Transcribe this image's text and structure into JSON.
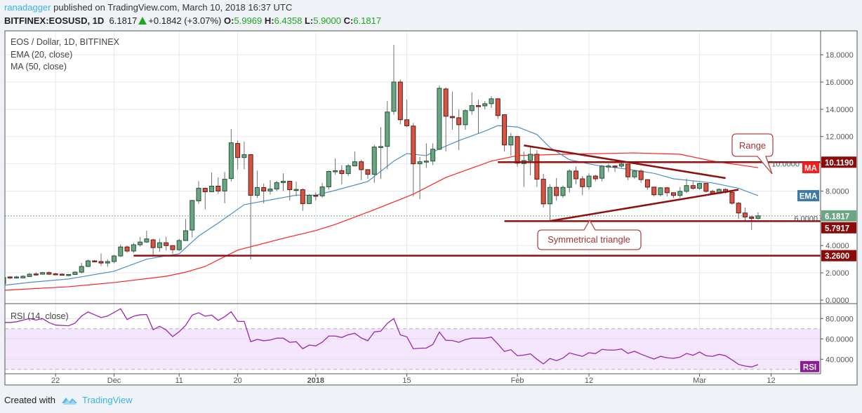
{
  "header": {
    "author": "ranadagger",
    "published": "published on TradingView.com, March 10, 2018 16:37 UTC",
    "symbol": "BITFINEX:EOSUSD, 1D",
    "last": "6.1817",
    "change": "+0.1842 (+3.07%)",
    "o_label": "O:",
    "o": "5.9969",
    "h_label": "H:",
    "h": "6.4358",
    "l_label": "L:",
    "l": "5.9000",
    "c_label": "C:",
    "c": "6.1817"
  },
  "legend": {
    "title": "EOS / Dollar, 1D, BITFINEX",
    "ema": "EMA (20, close)",
    "ma": "MA (50, close)",
    "rsi": "RSI (14, close)"
  },
  "footer": {
    "created_with": "Created with",
    "brand": "TradingView"
  },
  "chart_data": {
    "type": "candlestick",
    "colors": {
      "up": "#6ba583",
      "up_border": "#225437",
      "down": "#d75442",
      "down_border": "#5b1a13",
      "ema": "#4f8fc4",
      "ma": "#ff2020",
      "rsi": "#9c27b0",
      "levels": "#8e1010",
      "rsi_band": "#f3e6fd"
    },
    "price_axis": {
      "ticks": [
        "0.0000",
        "2.0000",
        "4.0000",
        "6.0000",
        "8.0000",
        "10.0000",
        "12.0000",
        "14.0000",
        "16.0000",
        "18.0000"
      ],
      "grid": true
    },
    "rsi_axis": {
      "ticks": [
        "40.0000",
        "60.0000",
        "80.0000"
      ],
      "upper_band": 70,
      "lower_band": 30
    },
    "x_ticks": [
      {
        "label": "22",
        "date": "2017-11-22"
      },
      {
        "label": "Dec",
        "date": "2017-12-01"
      },
      {
        "label": "11",
        "date": "2017-12-11"
      },
      {
        "label": "20",
        "date": "2017-12-20"
      },
      {
        "label": "2018",
        "date": "2018-01-01"
      },
      {
        "label": "15",
        "date": "2018-01-15"
      },
      {
        "label": "Feb",
        "date": "2018-02-01"
      },
      {
        "label": "12",
        "date": "2018-02-12"
      },
      {
        "label": "Mar",
        "date": "2018-03-01"
      },
      {
        "label": "12",
        "date": "2018-03-12"
      }
    ],
    "candle_fields": [
      "date",
      "open",
      "high",
      "low",
      "close"
    ],
    "candles": [
      [
        "2017-11-14",
        1.2,
        1.7,
        1.15,
        1.66
      ],
      [
        "2017-11-15",
        1.7,
        1.74,
        1.55,
        1.66
      ],
      [
        "2017-11-16",
        1.63,
        1.78,
        1.58,
        1.7
      ],
      [
        "2017-11-17",
        1.63,
        1.82,
        1.6,
        1.75
      ],
      [
        "2017-11-18",
        1.73,
        1.98,
        1.68,
        1.9
      ],
      [
        "2017-11-19",
        1.92,
        2.05,
        1.8,
        1.89
      ],
      [
        "2017-11-20",
        1.9,
        2.07,
        1.88,
        2.02
      ],
      [
        "2017-11-21",
        2.02,
        2.1,
        1.85,
        1.9
      ],
      [
        "2017-11-22",
        1.93,
        2.0,
        1.83,
        1.9
      ],
      [
        "2017-11-23",
        1.9,
        1.97,
        1.8,
        1.83
      ],
      [
        "2017-11-24",
        1.83,
        1.9,
        1.75,
        1.88
      ],
      [
        "2017-11-25",
        1.88,
        2.12,
        1.86,
        2.05
      ],
      [
        "2017-11-26",
        2.05,
        2.73,
        1.96,
        2.47
      ],
      [
        "2017-11-27",
        2.47,
        2.98,
        2.42,
        2.88
      ],
      [
        "2017-11-28",
        2.88,
        2.94,
        2.78,
        2.81
      ],
      [
        "2017-11-29",
        2.83,
        3.41,
        2.5,
        2.72
      ],
      [
        "2017-11-30",
        2.72,
        3.0,
        2.45,
        2.83
      ],
      [
        "2017-12-01",
        2.83,
        3.32,
        2.71,
        3.24
      ],
      [
        "2017-12-02",
        3.24,
        4.07,
        3.16,
        3.9
      ],
      [
        "2017-12-03",
        3.9,
        4.0,
        3.48,
        3.6
      ],
      [
        "2017-12-04",
        3.6,
        4.2,
        3.45,
        4.06
      ],
      [
        "2017-12-05",
        4.06,
        4.63,
        3.93,
        4.26
      ],
      [
        "2017-12-06",
        4.26,
        5.1,
        4.2,
        4.49
      ],
      [
        "2017-12-07",
        4.42,
        4.5,
        3.3,
        3.85
      ],
      [
        "2017-12-08",
        3.85,
        4.5,
        3.55,
        4.21
      ],
      [
        "2017-12-09",
        4.21,
        4.65,
        3.65,
        4.0
      ],
      [
        "2017-12-10",
        4.0,
        4.0,
        3.4,
        3.7
      ],
      [
        "2017-12-11",
        3.7,
        4.5,
        3.6,
        4.37
      ],
      [
        "2017-12-12",
        4.37,
        5.95,
        4.35,
        5.09
      ],
      [
        "2017-12-13",
        5.14,
        7.35,
        4.6,
        7.31
      ],
      [
        "2017-12-14",
        7.28,
        8.73,
        7.06,
        8.21
      ],
      [
        "2017-12-15",
        8.2,
        8.25,
        6.66,
        7.95
      ],
      [
        "2017-12-16",
        7.95,
        9.35,
        7.95,
        8.36
      ],
      [
        "2017-12-17",
        8.36,
        9.0,
        7.8,
        8.0
      ],
      [
        "2017-12-18",
        8.0,
        9.4,
        7.1,
        8.87
      ],
      [
        "2017-12-19",
        8.92,
        12.55,
        8.7,
        11.54
      ],
      [
        "2017-12-20",
        11.49,
        11.7,
        9.6,
        10.46
      ],
      [
        "2017-12-21",
        10.46,
        11.62,
        9.6,
        10.67
      ],
      [
        "2017-12-22",
        10.67,
        10.7,
        2.99,
        7.69
      ],
      [
        "2017-12-23",
        7.69,
        9.5,
        7.5,
        8.26
      ],
      [
        "2017-12-24",
        8.26,
        8.55,
        7.1,
        8.0
      ],
      [
        "2017-12-25",
        8.0,
        8.8,
        7.75,
        8.15
      ],
      [
        "2017-12-26",
        8.15,
        8.75,
        8.0,
        8.62
      ],
      [
        "2017-12-27",
        8.62,
        9.3,
        8.0,
        8.72
      ],
      [
        "2017-12-28",
        8.72,
        8.72,
        7.3,
        8.1
      ],
      [
        "2017-12-29",
        8.1,
        8.7,
        7.6,
        8.12
      ],
      [
        "2017-12-30",
        8.1,
        8.2,
        6.55,
        7.08
      ],
      [
        "2017-12-31",
        7.08,
        7.78,
        7.05,
        7.69
      ],
      [
        "2018-01-01",
        7.69,
        7.9,
        7.3,
        7.65
      ],
      [
        "2018-01-02",
        7.65,
        8.6,
        7.5,
        8.31
      ],
      [
        "2018-01-03",
        8.31,
        9.5,
        8.1,
        9.44
      ],
      [
        "2018-01-04",
        9.44,
        10.4,
        9.2,
        9.49
      ],
      [
        "2018-01-05",
        9.5,
        9.9,
        8.5,
        9.28
      ],
      [
        "2018-01-06",
        9.28,
        10.0,
        9.1,
        9.85
      ],
      [
        "2018-01-07",
        9.85,
        10.9,
        9.8,
        10.15
      ],
      [
        "2018-01-08",
        10.15,
        10.3,
        8.8,
        9.57
      ],
      [
        "2018-01-09",
        9.57,
        9.6,
        8.9,
        9.23
      ],
      [
        "2018-01-10",
        9.23,
        11.4,
        8.6,
        11.23
      ],
      [
        "2018-01-11",
        11.23,
        12.7,
        8.9,
        11.27
      ],
      [
        "2018-01-12",
        11.28,
        14.6,
        9.6,
        13.8
      ],
      [
        "2018-01-13",
        13.85,
        18.72,
        13.6,
        16.0
      ],
      [
        "2018-01-14",
        16.0,
        16.2,
        12.9,
        13.23
      ],
      [
        "2018-01-15",
        13.23,
        14.7,
        12.7,
        12.79
      ],
      [
        "2018-01-16",
        12.77,
        13.0,
        7.6,
        10.0
      ],
      [
        "2018-01-17",
        10.0,
        10.5,
        7.4,
        10.15
      ],
      [
        "2018-01-18",
        10.15,
        11.5,
        9.7,
        10.2
      ],
      [
        "2018-01-19",
        10.2,
        11.5,
        9.9,
        11.07
      ],
      [
        "2018-01-20",
        11.07,
        15.75,
        11.0,
        15.54
      ],
      [
        "2018-01-21",
        15.49,
        15.6,
        10.9,
        13.49
      ],
      [
        "2018-01-22",
        13.47,
        15.3,
        12.5,
        13.38
      ],
      [
        "2018-01-23",
        13.38,
        14.0,
        11.0,
        12.87
      ],
      [
        "2018-01-24",
        12.87,
        14.0,
        12.5,
        13.9
      ],
      [
        "2018-01-25",
        13.9,
        15.25,
        13.6,
        14.27
      ],
      [
        "2018-01-26",
        14.27,
        14.7,
        12.2,
        14.25
      ],
      [
        "2018-01-27",
        14.25,
        14.6,
        14.0,
        14.41
      ],
      [
        "2018-01-28",
        14.41,
        14.96,
        14.1,
        14.77
      ],
      [
        "2018-01-29",
        14.77,
        14.8,
        13.3,
        13.54
      ],
      [
        "2018-01-30",
        13.6,
        13.6,
        10.9,
        11.38
      ],
      [
        "2018-01-31",
        11.38,
        12.27,
        10.6,
        12.0
      ],
      [
        "2018-02-01",
        12.0,
        12.0,
        9.8,
        10.05
      ],
      [
        "2018-02-02",
        10.02,
        10.9,
        8.3,
        10.24
      ],
      [
        "2018-02-03",
        10.24,
        11.3,
        9.15,
        10.7
      ],
      [
        "2018-02-04",
        10.7,
        11.0,
        8.3,
        8.87
      ],
      [
        "2018-02-05",
        8.87,
        9.27,
        6.8,
        7.06
      ],
      [
        "2018-02-06",
        7.06,
        8.5,
        5.85,
        8.27
      ],
      [
        "2018-02-07",
        8.27,
        8.95,
        7.3,
        7.67
      ],
      [
        "2018-02-08",
        7.67,
        8.4,
        7.5,
        8.27
      ],
      [
        "2018-02-09",
        8.27,
        9.6,
        7.9,
        9.47
      ],
      [
        "2018-02-10",
        9.47,
        9.8,
        8.5,
        8.9
      ],
      [
        "2018-02-11",
        8.9,
        9.1,
        7.7,
        8.32
      ],
      [
        "2018-02-12",
        8.32,
        9.3,
        8.1,
        9.1
      ],
      [
        "2018-02-13",
        9.1,
        9.2,
        8.7,
        8.9
      ],
      [
        "2018-02-14",
        8.94,
        9.9,
        8.7,
        9.83
      ],
      [
        "2018-02-15",
        9.83,
        10.0,
        9.4,
        9.84
      ],
      [
        "2018-02-16",
        9.84,
        9.9,
        9.4,
        9.83
      ],
      [
        "2018-02-17",
        9.83,
        10.1,
        9.7,
        9.98
      ],
      [
        "2018-02-18",
        9.98,
        10.0,
        8.8,
        9.04
      ],
      [
        "2018-02-19",
        9.04,
        9.5,
        8.9,
        9.47
      ],
      [
        "2018-02-20",
        9.47,
        9.6,
        8.6,
        8.84
      ],
      [
        "2018-02-21",
        8.84,
        8.85,
        8.1,
        8.29
      ],
      [
        "2018-02-22",
        8.29,
        8.3,
        7.6,
        7.73
      ],
      [
        "2018-02-23",
        7.73,
        8.3,
        7.6,
        8.24
      ],
      [
        "2018-02-24",
        8.24,
        8.3,
        7.6,
        7.88
      ],
      [
        "2018-02-25",
        7.88,
        7.9,
        7.5,
        7.68
      ],
      [
        "2018-02-26",
        7.68,
        8.3,
        7.5,
        7.98
      ],
      [
        "2018-02-27",
        7.98,
        8.9,
        7.85,
        8.4
      ],
      [
        "2018-02-28",
        8.4,
        8.75,
        8.1,
        8.2
      ],
      [
        "2018-03-01",
        8.2,
        8.6,
        8.1,
        8.56
      ],
      [
        "2018-03-02",
        8.56,
        8.6,
        7.9,
        7.98
      ],
      [
        "2018-03-03",
        7.98,
        8.1,
        7.8,
        7.83
      ],
      [
        "2018-03-04",
        7.83,
        8.2,
        7.8,
        8.12
      ],
      [
        "2018-03-05",
        8.12,
        8.2,
        7.8,
        7.91
      ],
      [
        "2018-03-06",
        7.91,
        8.0,
        7.0,
        7.11
      ],
      [
        "2018-03-07",
        7.11,
        7.2,
        5.95,
        6.39
      ],
      [
        "2018-03-08",
        6.39,
        6.8,
        5.85,
        6.1
      ],
      [
        "2018-03-09",
        6.1,
        6.2,
        5.15,
        5.99
      ],
      [
        "2018-03-10",
        5.9969,
        6.4358,
        5.9,
        6.1817
      ]
    ],
    "ema": [
      [
        "2017-11-14",
        1.08
      ],
      [
        "2017-11-18",
        1.3
      ],
      [
        "2017-11-24",
        1.55
      ],
      [
        "2017-12-01",
        2.12
      ],
      [
        "2017-12-06",
        3.0
      ],
      [
        "2017-12-09",
        3.25
      ],
      [
        "2017-12-11",
        3.4
      ],
      [
        "2017-12-14",
        4.7
      ],
      [
        "2017-12-17",
        5.65
      ],
      [
        "2017-12-21",
        7.0
      ],
      [
        "2017-12-25",
        7.35
      ],
      [
        "2017-12-29",
        7.7
      ],
      [
        "2018-01-01",
        7.7
      ],
      [
        "2018-01-04",
        8.05
      ],
      [
        "2018-01-09",
        8.7
      ],
      [
        "2018-01-13",
        10.2
      ],
      [
        "2018-01-15",
        10.75
      ],
      [
        "2018-01-18",
        10.6
      ],
      [
        "2018-01-20",
        11.1
      ],
      [
        "2018-01-23",
        11.7
      ],
      [
        "2018-01-27",
        12.4
      ],
      [
        "2018-01-29",
        12.8
      ],
      [
        "2018-02-01",
        12.7
      ],
      [
        "2018-02-04",
        12.15
      ],
      [
        "2018-02-06",
        11.2
      ],
      [
        "2018-02-09",
        10.3
      ],
      [
        "2018-02-13",
        9.9
      ],
      [
        "2018-02-18",
        9.6
      ],
      [
        "2018-02-22",
        9.3
      ],
      [
        "2018-02-25",
        8.9
      ],
      [
        "2018-03-03",
        8.6
      ],
      [
        "2018-03-07",
        8.2
      ],
      [
        "2018-03-10",
        7.66
      ]
    ],
    "ma": [
      [
        "2017-11-14",
        0.72
      ],
      [
        "2017-11-24",
        0.98
      ],
      [
        "2017-12-01",
        1.29
      ],
      [
        "2017-12-09",
        1.75
      ],
      [
        "2017-12-12",
        2.05
      ],
      [
        "2017-12-15",
        2.47
      ],
      [
        "2017-12-20",
        3.67
      ],
      [
        "2017-12-27",
        4.53
      ],
      [
        "2018-01-01",
        5.1
      ],
      [
        "2018-01-04",
        5.55
      ],
      [
        "2018-01-10",
        6.63
      ],
      [
        "2018-01-16",
        7.77
      ],
      [
        "2018-01-21",
        9.0
      ],
      [
        "2018-01-28",
        10.2
      ],
      [
        "2018-02-01",
        10.6
      ],
      [
        "2018-02-08",
        10.7
      ],
      [
        "2018-02-19",
        10.8
      ],
      [
        "2018-02-26",
        10.7
      ],
      [
        "2018-03-03",
        10.2
      ],
      [
        "2018-03-10",
        9.72
      ]
    ],
    "rsi": [
      76.1,
      76.1,
      76.8,
      78.5,
      80,
      78.5,
      80,
      76,
      73.6,
      73.2,
      72.9,
      75.5,
      82.5,
      86.5,
      83.7,
      81,
      82.5,
      86,
      89.7,
      79,
      82.3,
      83.7,
      84,
      69,
      72.4,
      68.7,
      62.3,
      67,
      73.3,
      83.4,
      85.7,
      82.3,
      83.4,
      78.2,
      81.8,
      86.7,
      77.2,
      77.2,
      57.2,
      59.5,
      58.2,
      58.9,
      60.7,
      60.7,
      56.6,
      57.2,
      50.3,
      54,
      53.1,
      56.8,
      62.8,
      62.8,
      61.4,
      64.1,
      65.5,
      60.9,
      58.2,
      66.9,
      67.6,
      75.2,
      80,
      63.9,
      62.1,
      50.3,
      50.8,
      51,
      54.5,
      66.7,
      58.6,
      58.4,
      56.6,
      59.3,
      60.7,
      60.7,
      60.7,
      61.8,
      54.9,
      47.6,
      49.4,
      43.4,
      44.1,
      45.3,
      40,
      35.4,
      40.7,
      38.6,
      41.1,
      46.2,
      44.4,
      42.8,
      46.4,
      45.5,
      49.7,
      49,
      49,
      50.1,
      45.7,
      47.8,
      45,
      42.5,
      40.2,
      42.8,
      41.4,
      40.9,
      42.1,
      45.7,
      43.9,
      47.1,
      43.4,
      42.8,
      44.8,
      43.4,
      39.3,
      34.9,
      33.3,
      32.4,
      34.7
    ],
    "levels": [
      {
        "value": 10.119,
        "label": "10.1190",
        "from": "2018-01-29"
      },
      {
        "value": 5.7917,
        "label": "5.7917",
        "from": "2018-01-30"
      },
      {
        "value": 3.26,
        "label": "3.2600",
        "from": "2017-12-04"
      }
    ],
    "trendlines": [
      {
        "name": "triangle-upper",
        "from": [
          "2018-02-02",
          11.35
        ],
        "to": [
          "2018-03-05",
          8.95
        ]
      },
      {
        "name": "triangle-lower",
        "from": [
          "2018-02-06",
          5.8
        ],
        "to": [
          "2018-03-07",
          8.1
        ]
      }
    ],
    "last_price": {
      "value": 6.1817,
      "label": "6.1817"
    },
    "series_badges": {
      "ma": "MA",
      "ema": "EMA",
      "rsi": "RSI"
    },
    "annotations": {
      "range": "Range",
      "triangle": "Symmetrical triangle"
    }
  }
}
